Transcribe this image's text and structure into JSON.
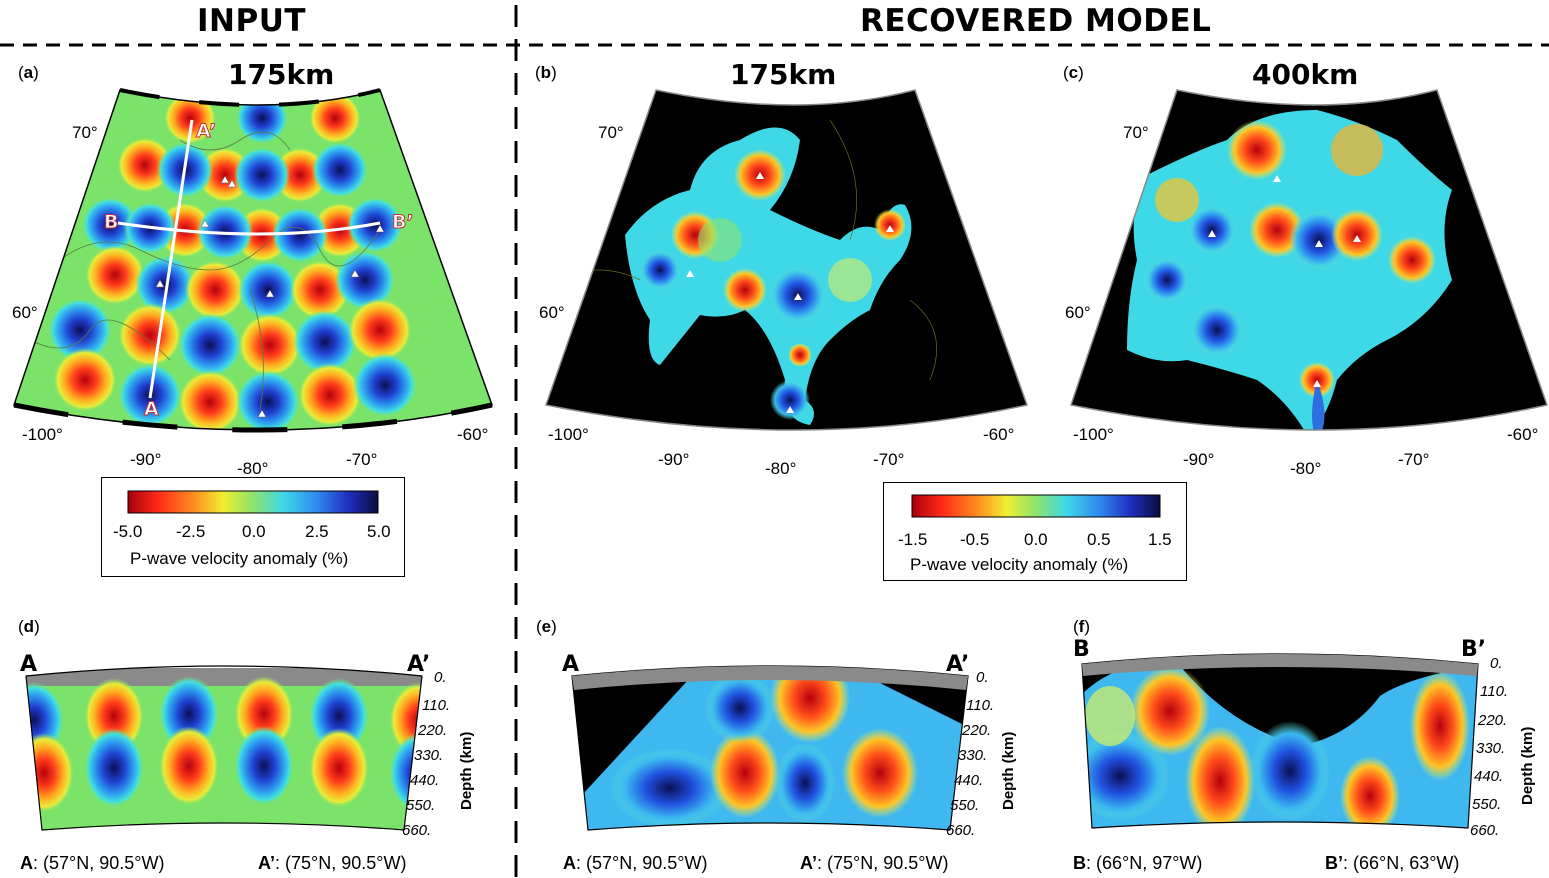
{
  "headers": {
    "input": "INPUT",
    "recovered": "RECOVERED MODEL"
  },
  "panels": [
    {
      "id": "a",
      "label": "a",
      "title": "175km",
      "kind": "input"
    },
    {
      "id": "b",
      "label": "b",
      "title": "175km",
      "kind": "recovered"
    },
    {
      "id": "c",
      "label": "c",
      "title": "400km",
      "kind": "recovered"
    }
  ],
  "map_axes": {
    "lat_labels": [
      "70°",
      "60°"
    ],
    "lon_labels_outer": [
      "-100°",
      "-60°"
    ],
    "lon_labels_inner": [
      "-90°",
      "-80°",
      "-70°"
    ]
  },
  "profile_a": {
    "start": "A",
    "end": "A’"
  },
  "profile_b": {
    "start": "B",
    "end": "B’"
  },
  "colorbar_input": {
    "ticks": [
      "-5.0",
      "-2.5",
      "0.0",
      "2.5",
      "5.0"
    ],
    "title": "P-wave velocity anomaly (%)"
  },
  "colorbar_recovered": {
    "ticks": [
      "-1.5",
      "-0.5",
      "0.0",
      "0.5",
      "1.5"
    ],
    "title": "P-wave velocity anomaly (%)"
  },
  "sections": [
    {
      "id": "d",
      "label": "d",
      "start": "A",
      "end": "A’",
      "start_coord_label": "A",
      "start_coord": ": (57°N, 90.5°W)",
      "end_coord_label": "A’",
      "end_coord": ": (75°N, 90.5°W)"
    },
    {
      "id": "e",
      "label": "e",
      "start": "A",
      "end": "A’",
      "start_coord_label": "A",
      "start_coord": ": (57°N, 90.5°W)",
      "end_coord_label": "A’",
      "end_coord": ": (75°N, 90.5°W)"
    },
    {
      "id": "f",
      "label": "f",
      "start": "B",
      "end": "B’",
      "start_coord_label": "B",
      "start_coord": ": (66°N, 97°W)",
      "end_coord_label": "B’",
      "end_coord": ": (66°N, 63°W)"
    }
  ],
  "depth_axis": {
    "ticks": [
      "0.",
      "110.",
      "220.",
      "330.",
      "440.",
      "550.",
      "660."
    ],
    "label": "Depth (km)"
  },
  "colors": {
    "anomaly_slow": "#c00010",
    "anomaly_fast": "#151a6e",
    "background": "#7be36a",
    "masked": "#000000"
  }
}
